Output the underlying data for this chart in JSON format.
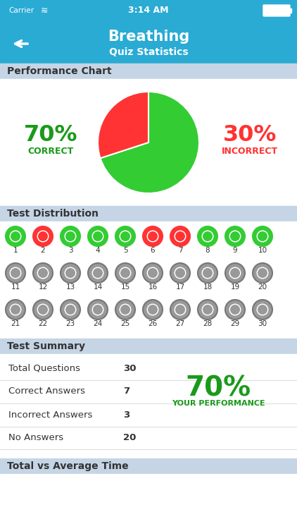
{
  "title": "Breathing",
  "subtitle": "Quiz Statistics",
  "nav_bg": "#29ABD4",
  "section_bg": "#C5D5E5",
  "white_bg": "#FFFFFF",
  "correct_pct": 70,
  "incorrect_pct": 30,
  "correct_color": "#33CC33",
  "incorrect_color": "#FF3333",
  "correct_label": "CORRECT",
  "incorrect_label": "INCORRECT",
  "pie_correct_color": "#33CC33",
  "pie_incorrect_color": "#FF3333",
  "section1_label": "Performance Chart",
  "section2_label": "Test Distribution",
  "section3_label": "Test Summary",
  "section4_label": "Total vs Average Time",
  "dot_states": [
    "correct",
    "incorrect",
    "correct",
    "correct",
    "correct",
    "incorrect",
    "incorrect",
    "correct",
    "correct",
    "correct",
    "none",
    "none",
    "none",
    "none",
    "none",
    "none",
    "none",
    "none",
    "none",
    "none",
    "none",
    "none",
    "none",
    "none",
    "none",
    "none",
    "none",
    "none",
    "none",
    "none"
  ],
  "total_questions": 30,
  "correct_answers": 7,
  "incorrect_answers": 3,
  "no_answers": 20,
  "performance_pct": "70%",
  "performance_label": "YOUR PERFORMANCE",
  "green_text": "#1A9A1A",
  "red_text": "#FF3333",
  "dark_text": "#333333",
  "gray_text": "#555555",
  "gray_dot_fill": "#999999",
  "gray_dot_border": "#777777",
  "line_color": "#DDDDDD"
}
